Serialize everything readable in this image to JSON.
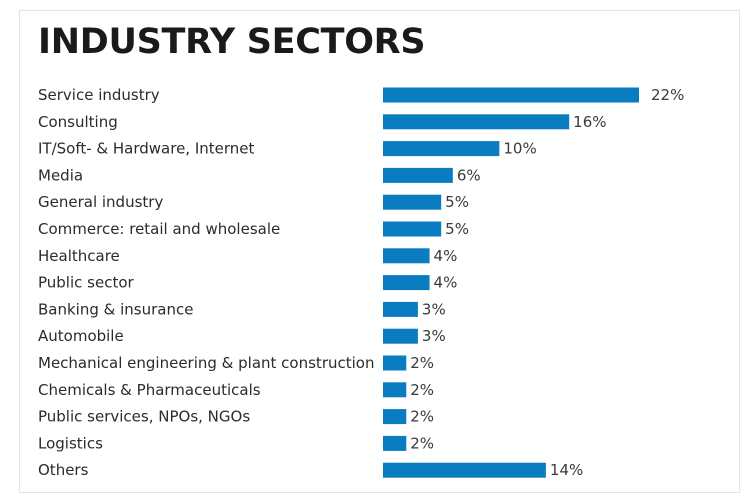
{
  "chart_data": {
    "type": "bar",
    "orientation": "horizontal",
    "title": "INDUSTRY SECTORS",
    "categories": [
      "Service industry",
      "Consulting",
      "IT/Soft- & Hardware, Internet",
      "Media",
      "General industry",
      "Commerce: retail and wholesale",
      "Healthcare",
      "Public sector",
      "Banking & insurance",
      "Automobile",
      "Mechanical engineering & plant construction",
      "Chemicals & Pharmaceuticals",
      "Public services, NPOs, NGOs",
      "Logistics",
      "Others"
    ],
    "values": [
      22,
      16,
      10,
      6,
      5,
      5,
      4,
      4,
      3,
      3,
      2,
      2,
      2,
      2,
      14
    ],
    "value_labels": [
      "22%",
      "16%",
      "10%",
      "6%",
      "5%",
      "5%",
      "4%",
      "4%",
      "3%",
      "3%",
      "2%",
      "2%",
      "2%",
      "2%",
      "14%"
    ],
    "unit": "%",
    "xlim": [
      0,
      22
    ],
    "grid": false,
    "legend": "none",
    "bar_color": "#0a7cc1"
  }
}
